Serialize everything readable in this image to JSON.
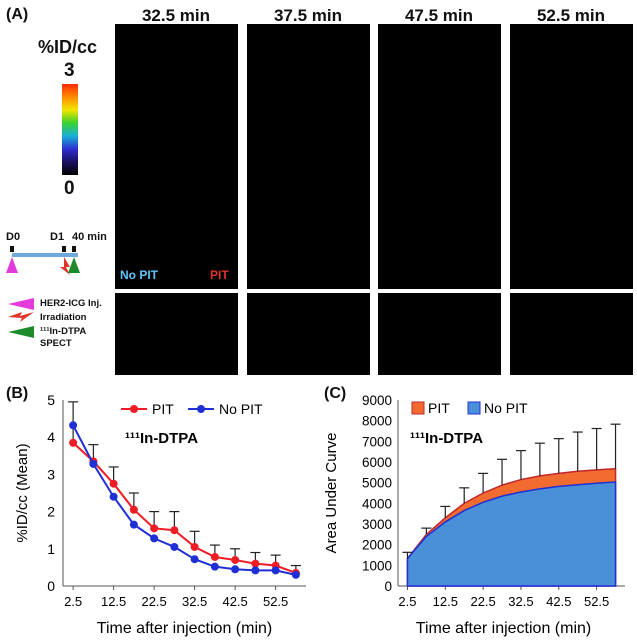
{
  "panel_a": {
    "label": "(A)",
    "time_labels": [
      "32.5 min",
      "37.5 min",
      "47.5 min",
      "52.5 min"
    ],
    "colorbar": {
      "title": "%ID/cc",
      "max_label": "3",
      "min_label": "0"
    },
    "timeline": {
      "d0": "D0",
      "d1": "D1",
      "min40": "40 min"
    },
    "tumor_labels": {
      "no_pit": "No PIT",
      "pit": "PIT"
    },
    "legend": {
      "inj": "HER2-ICG Inj.",
      "irr": "Irradiation",
      "spect_line1": "¹¹¹In-DTPA",
      "spect_line2": "SPECT"
    },
    "colors": {
      "no_pit": "#3fc3f2",
      "pit": "#e0342a",
      "inj": "#e23bd9",
      "spect": "#1f8a2b"
    }
  },
  "panel_b_label": "(B)",
  "panel_c_label": "(C)",
  "chart_data": [
    {
      "type": "line",
      "title": "¹¹¹In-DTPA",
      "xlabel": "Time after injection (min)",
      "ylabel": "%ID/cc (Mean)",
      "xlim": [
        0,
        60
      ],
      "ylim": [
        0,
        5
      ],
      "x_ticks": [
        2.5,
        12.5,
        22.5,
        32.5,
        42.5,
        52.5
      ],
      "y_ticks": [
        0,
        1,
        2,
        3,
        4,
        5
      ],
      "x": [
        2.5,
        7.5,
        12.5,
        17.5,
        22.5,
        27.5,
        32.5,
        37.5,
        42.5,
        47.5,
        52.5,
        57.5
      ],
      "series": [
        {
          "name": "PIT",
          "color": "#ee1c25",
          "values": [
            3.85,
            3.35,
            2.75,
            2.05,
            1.55,
            1.5,
            1.05,
            0.78,
            0.7,
            0.6,
            0.55,
            0.35
          ],
          "errors": [
            1.1,
            0.45,
            0.45,
            0.45,
            0.45,
            0.5,
            0.42,
            0.32,
            0.3,
            0.3,
            0.28,
            0.2
          ]
        },
        {
          "name": "No PIT",
          "color": "#1f2fd6",
          "values": [
            4.32,
            3.28,
            2.4,
            1.65,
            1.28,
            1.05,
            0.72,
            0.52,
            0.45,
            0.42,
            0.42,
            0.3
          ],
          "errors": [
            0,
            0,
            0,
            0,
            0,
            0,
            0,
            0,
            0,
            0,
            0,
            0
          ]
        }
      ],
      "legend": [
        "PIT",
        "No PIT"
      ]
    },
    {
      "type": "area",
      "title": "¹¹¹In-DTPA",
      "xlabel": "Time after injection (min)",
      "ylabel": "Area Under Curve",
      "xlim": [
        0,
        60
      ],
      "ylim": [
        0,
        9000
      ],
      "x_ticks": [
        2.5,
        12.5,
        22.5,
        32.5,
        42.5,
        52.5
      ],
      "y_ticks": [
        0,
        1000,
        2000,
        3000,
        4000,
        5000,
        6000,
        7000,
        8000,
        9000
      ],
      "x": [
        2.5,
        7.5,
        12.5,
        17.5,
        22.5,
        27.5,
        32.5,
        37.5,
        42.5,
        47.5,
        52.5,
        57.5
      ],
      "series": [
        {
          "name": "PIT",
          "color": "#f26b2f",
          "values": [
            1330,
            2500,
            3300,
            4000,
            4500,
            4880,
            5150,
            5330,
            5450,
            5550,
            5620,
            5680
          ],
          "errors": [
            300,
            300,
            550,
            750,
            950,
            1250,
            1400,
            1580,
            1680,
            1900,
            2000,
            2150
          ]
        },
        {
          "name": "No PIT",
          "color": "#4a90d9",
          "values": [
            1330,
            2400,
            3100,
            3650,
            4050,
            4350,
            4550,
            4700,
            4820,
            4900,
            4970,
            5030
          ],
          "errors": [
            0,
            0,
            0,
            0,
            0,
            0,
            0,
            0,
            0,
            0,
            0,
            0
          ]
        }
      ],
      "legend": [
        "PIT",
        "No PIT"
      ]
    }
  ]
}
